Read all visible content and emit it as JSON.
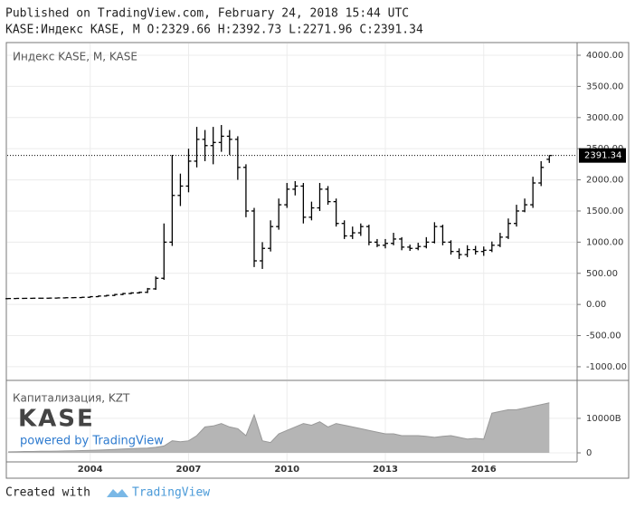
{
  "header": {
    "published": "Published on TradingView.com, February 24, 2018 15:44 UTC",
    "symbol_line": "KASE:Индекс KASE, M O:2329.66 H:2392.73 L:2271.96 C:2391.34"
  },
  "footer": {
    "created": "Created with",
    "brand": "TradingView"
  },
  "logo": {
    "name": "KASE",
    "tagline": "powered by TradingView"
  },
  "chart_data": [
    {
      "type": "ohlc",
      "title": "Индекс KASE, M, KASE",
      "color": "#000000",
      "grid": true,
      "x": [
        2001.5,
        2001.75,
        2002,
        2002.25,
        2002.5,
        2002.75,
        2003,
        2003.25,
        2003.5,
        2003.75,
        2004,
        2004.25,
        2004.5,
        2004.75,
        2005,
        2005.25,
        2005.5,
        2005.75,
        2006,
        2006.25,
        2006.5,
        2006.75,
        2007,
        2007.25,
        2007.5,
        2007.75,
        2008,
        2008.25,
        2008.5,
        2008.75,
        2009,
        2009.25,
        2009.5,
        2009.75,
        2010,
        2010.25,
        2010.5,
        2010.75,
        2011,
        2011.25,
        2011.5,
        2011.75,
        2012,
        2012.25,
        2012.5,
        2012.75,
        2013,
        2013.25,
        2013.5,
        2013.75,
        2014,
        2014.25,
        2014.5,
        2014.75,
        2015,
        2015.25,
        2015.5,
        2015.75,
        2016,
        2016.25,
        2016.5,
        2016.75,
        2017,
        2017.25,
        2017.5,
        2017.75,
        2018
      ],
      "open": [
        93,
        95,
        97,
        98,
        100,
        100,
        102,
        105,
        108,
        110,
        115,
        125,
        135,
        145,
        160,
        175,
        185,
        195,
        250,
        420,
        1000,
        1750,
        1900,
        2300,
        2650,
        2550,
        2600,
        2700,
        2650,
        2200,
        1500,
        700,
        900,
        1250,
        1600,
        1850,
        1900,
        1400,
        1550,
        1850,
        1650,
        1300,
        1100,
        1150,
        1250,
        1000,
        950,
        980,
        1050,
        920,
        900,
        930,
        1000,
        1250,
        1000,
        850,
        800,
        880,
        850,
        870,
        950,
        1080,
        1300,
        1500,
        1600,
        1950,
        2329.66
      ],
      "high": [
        100,
        102,
        103,
        105,
        105,
        107,
        110,
        114,
        116,
        122,
        132,
        143,
        154,
        170,
        186,
        196,
        207,
        265,
        450,
        1300,
        2400,
        2100,
        2500,
        2850,
        2800,
        2850,
        2880,
        2800,
        2700,
        2250,
        1550,
        1000,
        1350,
        1700,
        1950,
        1980,
        1950,
        1650,
        1950,
        1900,
        1700,
        1350,
        1250,
        1300,
        1280,
        1050,
        1050,
        1150,
        1080,
        960,
        990,
        1080,
        1320,
        1280,
        1030,
        900,
        950,
        940,
        930,
        1010,
        1150,
        1380,
        1600,
        1700,
        2050,
        2300,
        2392.73
      ],
      "low": [
        88,
        90,
        91,
        92,
        94,
        94,
        96,
        99,
        102,
        104,
        108,
        118,
        127,
        136,
        150,
        165,
        174,
        183,
        235,
        395,
        940,
        1580,
        1800,
        2200,
        2300,
        2250,
        2450,
        2400,
        2000,
        1400,
        600,
        570,
        850,
        1200,
        1550,
        1750,
        1300,
        1350,
        1500,
        1600,
        1250,
        1050,
        1050,
        1100,
        950,
        920,
        900,
        950,
        870,
        860,
        870,
        900,
        980,
        950,
        800,
        730,
        760,
        800,
        780,
        840,
        920,
        1050,
        1250,
        1480,
        1550,
        1900,
        2271.96
      ],
      "close": [
        95,
        97,
        98,
        100,
        100,
        102,
        105,
        108,
        110,
        115,
        125,
        135,
        145,
        160,
        175,
        185,
        195,
        250,
        420,
        1000,
        1750,
        1900,
        2300,
        2650,
        2550,
        2600,
        2700,
        2650,
        2200,
        1500,
        700,
        900,
        1250,
        1600,
        1850,
        1900,
        1400,
        1550,
        1850,
        1650,
        1300,
        1100,
        1150,
        1250,
        1000,
        950,
        980,
        1050,
        920,
        900,
        930,
        1000,
        1250,
        1000,
        850,
        800,
        880,
        850,
        870,
        950,
        1080,
        1300,
        1500,
        1600,
        1950,
        2200,
        2391.34
      ],
      "last_price": {
        "value": 2391.34,
        "label": "2391.34"
      },
      "xlim": [
        2001.47,
        2018.82
      ],
      "ylim": [
        -1190,
        4160
      ],
      "yticks": [
        {
          "value": 4000,
          "label": "4000.00"
        },
        {
          "value": 3500,
          "label": "3500.00"
        },
        {
          "value": 3000,
          "label": "3000.00"
        },
        {
          "value": 2500,
          "label": "2500.00"
        },
        {
          "value": 2000,
          "label": "2000.00"
        },
        {
          "value": 1500,
          "label": "1500.00"
        },
        {
          "value": 1000,
          "label": "1000.00"
        },
        {
          "value": 500,
          "label": "500.00"
        },
        {
          "value": 0,
          "label": "0.00"
        },
        {
          "value": -500,
          "label": "-500.00"
        },
        {
          "value": -1000,
          "label": "-1000.00"
        }
      ]
    },
    {
      "type": "area",
      "title": "Капитализация, KZT",
      "color": "#b5b5b5",
      "grid": true,
      "values": [
        300,
        350,
        400,
        400,
        450,
        450,
        500,
        550,
        600,
        650,
        700,
        800,
        900,
        1000,
        1100,
        1200,
        1300,
        1400,
        1600,
        2000,
        3500,
        3200,
        3500,
        5000,
        7500,
        7800,
        8500,
        7500,
        7000,
        5000,
        11000,
        3500,
        3000,
        5500,
        6500,
        7500,
        8500,
        8000,
        9000,
        7500,
        8500,
        8000,
        7500,
        7000,
        6500,
        6000,
        5500,
        5500,
        5000,
        5000,
        5000,
        4800,
        4500,
        4800,
        5000,
        4500,
        4000,
        4200,
        4000,
        11500,
        12000,
        12500,
        12500,
        13000,
        13500,
        14000,
        14500
      ],
      "ylim": [
        -2100,
        21000
      ],
      "yticks": [
        0,
        {
          "value": 10000,
          "label": "10000B"
        }
      ],
      "xticks": [
        2004,
        2007,
        2010,
        2013,
        2016
      ]
    }
  ]
}
